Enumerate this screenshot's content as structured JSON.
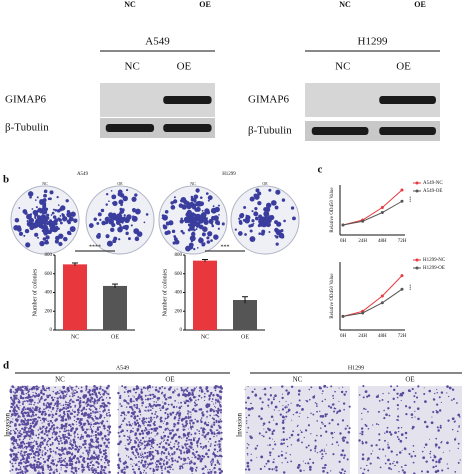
{
  "top_strip": {
    "left": [
      "NC",
      "OE"
    ],
    "right": [
      "NC",
      "OE"
    ]
  },
  "panel_a": {
    "blots": [
      {
        "cell_line": "A549",
        "groups": [
          "NC",
          "OE"
        ],
        "proteins": [
          "GIMAP6",
          "β-Tubulin"
        ]
      },
      {
        "cell_line": "H1299",
        "groups": [
          "NC",
          "OE"
        ],
        "proteins": [
          "GIMAP6",
          "β-Tubulin"
        ]
      }
    ]
  },
  "panel_b": {
    "label": "b",
    "dishes": [
      {
        "cell_line": "A549",
        "groups": [
          "NC",
          "OE"
        ]
      },
      {
        "cell_line": "H1299",
        "groups": [
          "NC",
          "OE"
        ]
      }
    ],
    "charts": [
      {
        "type": "bar",
        "ylabel": "Number of colonies",
        "categories": [
          "NC",
          "OE"
        ],
        "values": [
          700,
          470
        ],
        "errors": [
          15,
          20
        ],
        "colors": [
          "#e8383d",
          "#555555"
        ],
        "ylim": [
          0,
          800
        ],
        "yticks": [
          0,
          200,
          400,
          600,
          800
        ],
        "significance": "****"
      },
      {
        "type": "bar",
        "ylabel": "Number of colonies",
        "categories": [
          "NC",
          "OE"
        ],
        "values": [
          740,
          320
        ],
        "errors": [
          12,
          35
        ],
        "colors": [
          "#e8383d",
          "#555555"
        ],
        "ylim": [
          0,
          800
        ],
        "yticks": [
          0,
          200,
          400,
          600,
          800
        ],
        "significance": "***"
      }
    ]
  },
  "panel_c": {
    "label": "c",
    "charts": [
      {
        "type": "line",
        "ylabel": "Relative OD450 Value",
        "x": [
          "0H",
          "24H",
          "48H",
          "72H"
        ],
        "ylim": [
          0,
          4
        ],
        "significance": "***",
        "series": [
          {
            "name": "A549-NC",
            "color": "#e8383d",
            "values": [
              0.8,
              1.2,
              2.2,
              3.6
            ]
          },
          {
            "name": "A549-OE",
            "color": "#555555",
            "values": [
              0.8,
              1.1,
              1.8,
              2.7
            ]
          }
        ]
      },
      {
        "type": "line",
        "ylabel": "Relative OD450 Value",
        "x": [
          "0H",
          "24H",
          "48H",
          "72H"
        ],
        "ylim": [
          0,
          4
        ],
        "significance": "***",
        "series": [
          {
            "name": "H1299-NC",
            "color": "#e8383d",
            "values": [
              0.8,
              1.1,
              2.0,
              3.2
            ]
          },
          {
            "name": "H1299-OE",
            "color": "#555555",
            "values": [
              0.8,
              1.0,
              1.6,
              2.4
            ]
          }
        ]
      }
    ]
  },
  "panel_d": {
    "label": "d",
    "row_label": "Invasion",
    "blocks": [
      {
        "cell_line": "A549",
        "groups": [
          "NC",
          "OE"
        ]
      },
      {
        "cell_line": "H1299",
        "groups": [
          "NC",
          "OE"
        ]
      }
    ]
  }
}
